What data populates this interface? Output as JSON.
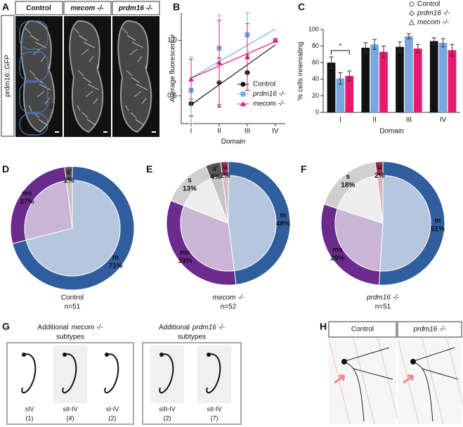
{
  "panel_a": {
    "letter": "A",
    "label": "prdm16::GFP",
    "columns": [
      "Control",
      "mecom -/-",
      "prdm16 -/-"
    ],
    "domains": [
      "I",
      "II",
      "III",
      "IV"
    ]
  },
  "chart_data": [
    {
      "type": "line",
      "letter": "B",
      "ylabel": "Average fluorescence",
      "xlabel": "Domain",
      "categories": [
        "I",
        "II",
        "III",
        "IV"
      ],
      "ylim": [
        0.25,
        1.25
      ],
      "yticks": [
        0.5,
        {
          "value": 1,
          "label": "1.0"
        }
      ],
      "legend": "lower right",
      "series": [
        {
          "name": "Control",
          "color": "#111111",
          "marker": "circle",
          "values": [
            0.43,
            0.62,
            0.71,
            1.0
          ],
          "errors": [
            0.11,
            0.22,
            0.16,
            0
          ]
        },
        {
          "name": "prdm16 -/-",
          "color": "#7aa7e0",
          "marker": "square",
          "values": [
            0.55,
            0.93,
            1.05,
            1.0
          ],
          "errors": [
            0.3,
            0.3,
            0.2,
            0
          ]
        },
        {
          "name": "mecom -/-",
          "color": "#e8186e",
          "marker": "triangle",
          "values": [
            0.65,
            0.8,
            0.85,
            1.0
          ],
          "errors": [
            0.18,
            0.38,
            0.3,
            0
          ]
        }
      ]
    },
    {
      "type": "bar",
      "letter": "C",
      "ylabel": "% cells innervating",
      "xlabel": "Domain",
      "categories": [
        "I",
        "II",
        "III",
        "IV"
      ],
      "ylim": [
        0,
        100
      ],
      "yticks": [
        0,
        20,
        40,
        60,
        80,
        100
      ],
      "legend": "upper right",
      "annotation": "*",
      "series": [
        {
          "name": "Control",
          "color": "#111111",
          "marker": "circle",
          "values": [
            60,
            78,
            79,
            86
          ],
          "errors": [
            7,
            6,
            6,
            4
          ]
        },
        {
          "name": "prdm16 -/-",
          "color": "#7aa7e0",
          "marker": "diamond",
          "values": [
            41,
            82,
            92,
            84
          ],
          "errors": [
            7,
            6,
            3,
            5
          ]
        },
        {
          "name": "mecom -/-",
          "color": "#e8186e",
          "marker": "triangle",
          "values": [
            44,
            73,
            77,
            75
          ],
          "errors": [
            6,
            7,
            5,
            7
          ]
        }
      ]
    },
    {
      "type": "pie",
      "letter": "D",
      "caption": "Control",
      "n_label": "n=51",
      "categories": [
        "m",
        "ms",
        "s'"
      ],
      "values": [
        71,
        27,
        2
      ],
      "value_labels": [
        "71%",
        "27%",
        "2%"
      ],
      "colors": [
        "#2f5d9e",
        "#6b2a8c",
        "#555555"
      ]
    },
    {
      "type": "pie",
      "letter": "E",
      "caption": "mecom -/-",
      "n_label": "n=52",
      "categories": [
        "m",
        "ms",
        "s",
        "s'",
        "u"
      ],
      "values": [
        48,
        33,
        13,
        4,
        2
      ],
      "value_labels": [
        "48%",
        "33%",
        "13%",
        "4%",
        "2%"
      ],
      "colors": [
        "#2f5d9e",
        "#6b2a8c",
        "#cfcfcf",
        "#555555",
        "#9c2f4f"
      ]
    },
    {
      "type": "pie",
      "letter": "F",
      "caption": "prdm16 -/-",
      "n_label": "n=51",
      "categories": [
        "m",
        "ms",
        "s",
        "u"
      ],
      "values": [
        51,
        29,
        18,
        2
      ],
      "value_labels": [
        "51%",
        "29%",
        "18%",
        "2%"
      ],
      "colors": [
        "#2f5d9e",
        "#6b2a8c",
        "#cfcfcf",
        "#9c2f4f"
      ]
    }
  ],
  "panel_g": {
    "letter": "G",
    "groups": [
      {
        "prefix": "Additional",
        "genotype": "mecom -/-",
        "suffix": "subtypes",
        "items": [
          {
            "name": "sIV",
            "count": "(1)"
          },
          {
            "name": "sII-IV",
            "count": "(4)"
          },
          {
            "name": "sI-IV",
            "count": "(2)"
          }
        ]
      },
      {
        "prefix": "Additional",
        "genotype": "prdm16 -/-",
        "suffix": "subtypes",
        "items": [
          {
            "name": "sIII-IV",
            "count": "(2)"
          },
          {
            "name": "sII-IV",
            "count": "(7)"
          }
        ]
      }
    ]
  },
  "panel_h": {
    "letter": "H",
    "columns": [
      "Control",
      "prdm16 -/-"
    ]
  }
}
